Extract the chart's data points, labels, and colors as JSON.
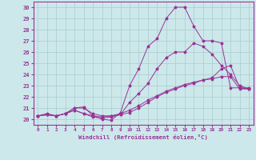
{
  "xlabel": "Windchill (Refroidissement éolien,°C)",
  "bg_color": "#cce8ea",
  "grid_color": "#aacccc",
  "line_color": "#993399",
  "xlim": [
    -0.5,
    23.5
  ],
  "ylim": [
    19.5,
    30.5
  ],
  "xticks": [
    0,
    1,
    2,
    3,
    4,
    5,
    6,
    7,
    8,
    9,
    10,
    11,
    12,
    13,
    14,
    15,
    16,
    17,
    18,
    19,
    20,
    21,
    22,
    23
  ],
  "yticks": [
    20,
    21,
    22,
    23,
    24,
    25,
    26,
    27,
    28,
    29,
    30
  ],
  "line1_x": [
    0,
    1,
    2,
    3,
    4,
    5,
    6,
    7,
    8,
    9,
    10,
    11,
    12,
    13,
    14,
    15,
    16,
    17,
    18,
    19,
    20,
    21,
    22,
    23
  ],
  "line1_y": [
    20.3,
    20.5,
    20.3,
    20.5,
    21.0,
    21.1,
    20.3,
    20.0,
    19.9,
    20.6,
    23.0,
    24.5,
    26.5,
    27.2,
    29.0,
    30.0,
    30.0,
    28.3,
    27.0,
    27.0,
    26.8,
    22.8,
    22.8,
    22.7
  ],
  "line2_x": [
    0,
    1,
    2,
    3,
    4,
    5,
    6,
    7,
    8,
    9,
    10,
    11,
    12,
    13,
    14,
    15,
    16,
    17,
    18,
    19,
    20,
    21,
    22,
    23
  ],
  "line2_y": [
    20.3,
    20.4,
    20.3,
    20.5,
    21.0,
    21.0,
    20.5,
    20.3,
    20.3,
    20.4,
    21.5,
    22.3,
    23.2,
    24.5,
    25.5,
    26.0,
    26.0,
    26.8,
    26.5,
    25.8,
    24.8,
    24.0,
    23.0,
    22.7
  ],
  "line3_x": [
    0,
    1,
    2,
    3,
    4,
    5,
    6,
    7,
    8,
    9,
    10,
    11,
    12,
    13,
    14,
    15,
    16,
    17,
    18,
    19,
    20,
    21,
    22,
    23
  ],
  "line3_y": [
    20.3,
    20.4,
    20.3,
    20.5,
    20.8,
    20.5,
    20.3,
    20.2,
    20.3,
    20.5,
    20.8,
    21.2,
    21.7,
    22.1,
    22.5,
    22.8,
    23.1,
    23.3,
    23.5,
    23.7,
    24.5,
    24.8,
    22.8,
    22.8
  ],
  "line4_x": [
    0,
    1,
    2,
    3,
    4,
    5,
    6,
    7,
    8,
    9,
    10,
    11,
    12,
    13,
    14,
    15,
    16,
    17,
    18,
    19,
    20,
    21,
    22,
    23
  ],
  "line4_y": [
    20.3,
    20.4,
    20.3,
    20.5,
    20.8,
    20.5,
    20.2,
    20.1,
    20.2,
    20.4,
    20.6,
    21.0,
    21.5,
    22.0,
    22.4,
    22.7,
    23.0,
    23.2,
    23.5,
    23.6,
    23.8,
    23.8,
    22.7,
    22.7
  ]
}
